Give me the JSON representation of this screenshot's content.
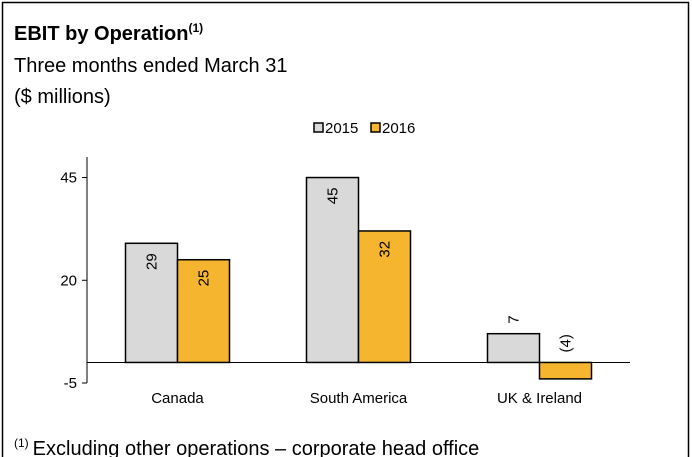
{
  "chart_data": {
    "type": "bar",
    "title": "EBIT by Operation",
    "title_superscript": "(1)",
    "subtitle": [
      "Three months ended March 31",
      "($ millions)"
    ],
    "categories": [
      "Canada",
      "South America",
      "UK & Ireland"
    ],
    "series": [
      {
        "name": "2015",
        "color": "#d9d9d9",
        "values": [
          29,
          45,
          7
        ]
      },
      {
        "name": "2016",
        "color": "#f5b52e",
        "values": [
          25,
          32,
          -4
        ],
        "value_labels": [
          "25",
          "32",
          "(4)"
        ]
      }
    ],
    "ylim": [
      -5,
      50
    ],
    "yticks": [
      -5,
      20,
      45
    ],
    "grid": false,
    "footnote": {
      "marker": "(1)",
      "text": "Excluding other operations – corporate head office"
    }
  }
}
